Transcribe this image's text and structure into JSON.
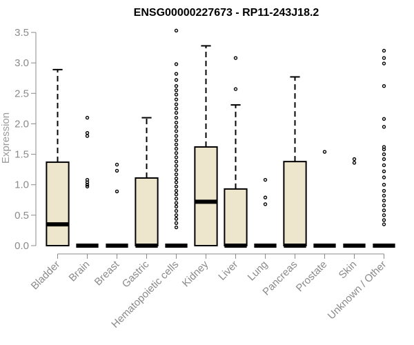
{
  "chart_data": {
    "type": "boxplot",
    "title": "ENSG00000227673 - RP11-243J18.2",
    "ylabel": "Expression",
    "xlabel": "",
    "ylim": [
      0,
      3.5
    ],
    "yticks": [
      "0.0",
      "0.5",
      "1.0",
      "1.5",
      "2.0",
      "2.5",
      "3.0",
      "3.5"
    ],
    "box_fill": "#ede6cc",
    "categories": [
      "Bladder",
      "Brain",
      "Breast",
      "Gastric",
      "Hematopoietic cells",
      "Kidney",
      "Liver",
      "Lung",
      "Pancreas",
      "Prostate",
      "Skin",
      "Unknown / Other"
    ],
    "boxes": [
      {
        "q1": 0.0,
        "median": 0.35,
        "q3": 1.37,
        "whisker_low": 0.0,
        "whisker_high": 2.89,
        "outliers": []
      },
      {
        "q1": 0.0,
        "median": 0.0,
        "q3": 0.0,
        "whisker_low": 0.0,
        "whisker_high": 0.0,
        "outliers": [
          2.1,
          1.85,
          1.8,
          1.08,
          1.04,
          1.0,
          0.97
        ]
      },
      {
        "q1": 0.0,
        "median": 0.0,
        "q3": 0.0,
        "whisker_low": 0.0,
        "whisker_high": 0.0,
        "outliers": [
          1.33,
          1.23,
          0.89
        ]
      },
      {
        "q1": 0.0,
        "median": 0.0,
        "q3": 1.11,
        "whisker_low": 0.0,
        "whisker_high": 2.1,
        "outliers": []
      },
      {
        "q1": 0.0,
        "median": 0.0,
        "q3": 0.0,
        "whisker_low": 0.0,
        "whisker_high": 0.0,
        "outliers": [
          3.53,
          2.98,
          2.82,
          2.72,
          2.62,
          2.55,
          2.48,
          2.4,
          2.32,
          2.25,
          2.18,
          2.1,
          2.02,
          1.95,
          1.88,
          1.8,
          1.73,
          1.66,
          1.59,
          1.52,
          1.45,
          1.38,
          1.31,
          1.24,
          1.17,
          1.1,
          1.04,
          0.97,
          0.9,
          0.84,
          0.77,
          0.7,
          0.64,
          0.57,
          0.5,
          0.44,
          0.37,
          0.3
        ]
      },
      {
        "q1": 0.0,
        "median": 0.72,
        "q3": 1.62,
        "whisker_low": 0.0,
        "whisker_high": 3.28,
        "outliers": []
      },
      {
        "q1": 0.0,
        "median": 0.0,
        "q3": 0.93,
        "whisker_low": 0.0,
        "whisker_high": 2.31,
        "outliers": [
          3.08,
          2.57
        ]
      },
      {
        "q1": 0.0,
        "median": 0.0,
        "q3": 0.0,
        "whisker_low": 0.0,
        "whisker_high": 0.0,
        "outliers": [
          1.08,
          0.79,
          0.68
        ]
      },
      {
        "q1": 0.0,
        "median": 0.0,
        "q3": 1.38,
        "whisker_low": 0.0,
        "whisker_high": 2.77,
        "outliers": []
      },
      {
        "q1": 0.0,
        "median": 0.0,
        "q3": 0.0,
        "whisker_low": 0.0,
        "whisker_high": 0.0,
        "outliers": [
          1.54
        ]
      },
      {
        "q1": 0.0,
        "median": 0.0,
        "q3": 0.0,
        "whisker_low": 0.0,
        "whisker_high": 0.0,
        "outliers": [
          1.42,
          1.36
        ]
      },
      {
        "q1": 0.0,
        "median": 0.0,
        "q3": 0.0,
        "whisker_low": 0.0,
        "whisker_high": 0.0,
        "outliers": [
          3.2,
          3.08,
          2.99,
          2.62,
          2.08,
          1.95,
          1.62,
          1.58,
          1.5,
          1.42,
          1.32,
          1.22,
          1.12,
          1.0,
          0.9,
          0.82,
          0.74,
          0.66,
          0.58,
          0.5,
          0.42,
          0.35
        ]
      }
    ]
  }
}
